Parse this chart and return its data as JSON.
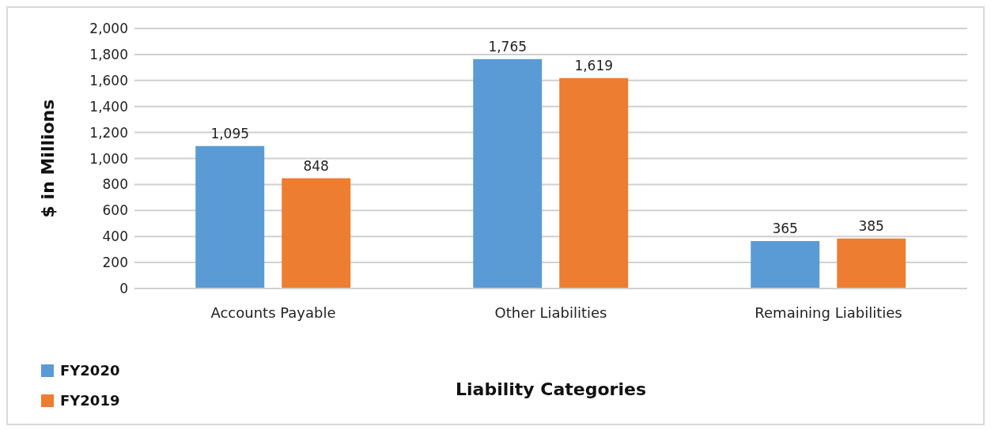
{
  "chart_data": {
    "type": "bar",
    "xlabel": "Liability Categories",
    "ylabel": "$ in Millions",
    "categories": [
      "Accounts Payable",
      "Other Liabilities",
      "Remaining Liabilities"
    ],
    "series": [
      {
        "name": "FY2020",
        "color": "#5b9bd5",
        "values": [
          1095,
          1765,
          365
        ],
        "value_labels": [
          "1,095",
          "1,765",
          "365"
        ]
      },
      {
        "name": "FY2019",
        "color": "#ed7d31",
        "values": [
          848,
          1619,
          385
        ],
        "value_labels": [
          "848",
          "1,619",
          "385"
        ]
      }
    ],
    "ylim": [
      0,
      2000
    ],
    "yticks": [
      {
        "value": 0,
        "label": "0"
      },
      {
        "value": 200,
        "label": "200"
      },
      {
        "value": 400,
        "label": "400"
      },
      {
        "value": 600,
        "label": "600"
      },
      {
        "value": 800,
        "label": "800"
      },
      {
        "value": 1000,
        "label": "1,000"
      },
      {
        "value": 1200,
        "label": "1,200"
      },
      {
        "value": 1400,
        "label": "1,400"
      },
      {
        "value": 1600,
        "label": "1,600"
      },
      {
        "value": 1800,
        "label": "1,800"
      },
      {
        "value": 2000,
        "label": "2,000"
      }
    ],
    "grid": "y",
    "legend": "bottom left"
  }
}
